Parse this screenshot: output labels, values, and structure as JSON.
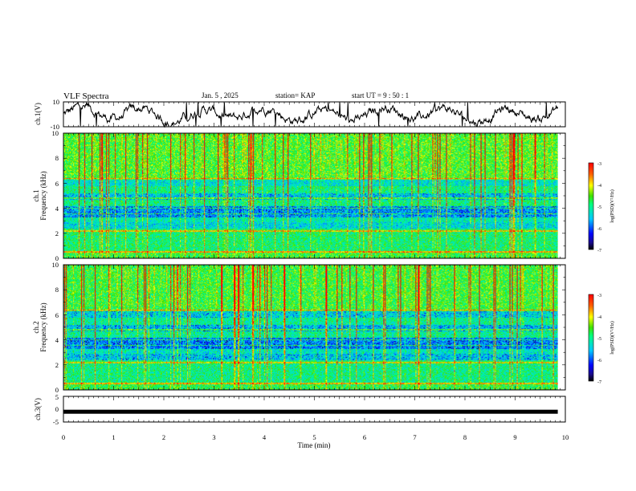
{
  "header": {
    "title": "VLF Spectra",
    "date": "Jan. 5 , 2025",
    "station": "station= KAP",
    "start_ut": "start UT =  9 : 50 : 1"
  },
  "chart_data": [
    {
      "type": "line",
      "name": "ch1-waveform",
      "ylabel": "ch.1(V)",
      "ylim": [
        -10,
        10
      ],
      "ytick_labels": [
        "10",
        "-10"
      ],
      "xlim": [
        0,
        10
      ],
      "series": [
        {
          "name": "ch.1",
          "color": "#000000",
          "x_end": 9.85
        }
      ]
    },
    {
      "type": "heatmap",
      "name": "ch1-spectrogram",
      "ylabel": "ch.1\nFrequency (kHz)",
      "ylabel_lines": [
        "ch.1",
        "Frequency (kHz)"
      ],
      "ylim": [
        0,
        10
      ],
      "ytick_labels": [
        "0",
        "2",
        "4",
        "6",
        "8",
        "10"
      ],
      "xlim": [
        0,
        10
      ],
      "data_x_end": 9.85,
      "colorbar": {
        "label": "log(PSD)(V²/Hz)",
        "range": [
          -7,
          -3
        ],
        "tick_labels": [
          "-3",
          "-4",
          "-5",
          "-6",
          "-7"
        ]
      }
    },
    {
      "type": "heatmap",
      "name": "ch2-spectrogram",
      "ylabel": "ch.2\nFrequency (kHz)",
      "ylabel_lines": [
        "ch.2",
        "Frequency (kHz)"
      ],
      "ylim": [
        0,
        10
      ],
      "ytick_labels": [
        "0",
        "2",
        "4",
        "6",
        "8",
        "10"
      ],
      "xlim": [
        0,
        10
      ],
      "data_x_end": 9.85,
      "colorbar": {
        "label": "log(PSD)(V²/Hz)",
        "range": [
          -7,
          -3
        ],
        "tick_labels": [
          "-3",
          "-4",
          "-5",
          "-6",
          "-7"
        ]
      }
    },
    {
      "type": "line",
      "name": "ch3-waveform",
      "ylabel": "ch.3(V)",
      "ylim": [
        -5,
        5
      ],
      "ytick_labels": [
        "5",
        "0",
        "-5"
      ],
      "xlim": [
        0,
        10
      ],
      "series": [
        {
          "name": "ch.3",
          "color": "#000000",
          "level": -1,
          "x_end": 9.85
        }
      ]
    }
  ],
  "x_axis": {
    "label": "Time (min)",
    "tick_labels": [
      "0",
      "1",
      "2",
      "3",
      "4",
      "5",
      "6",
      "7",
      "8",
      "9",
      "10"
    ]
  }
}
